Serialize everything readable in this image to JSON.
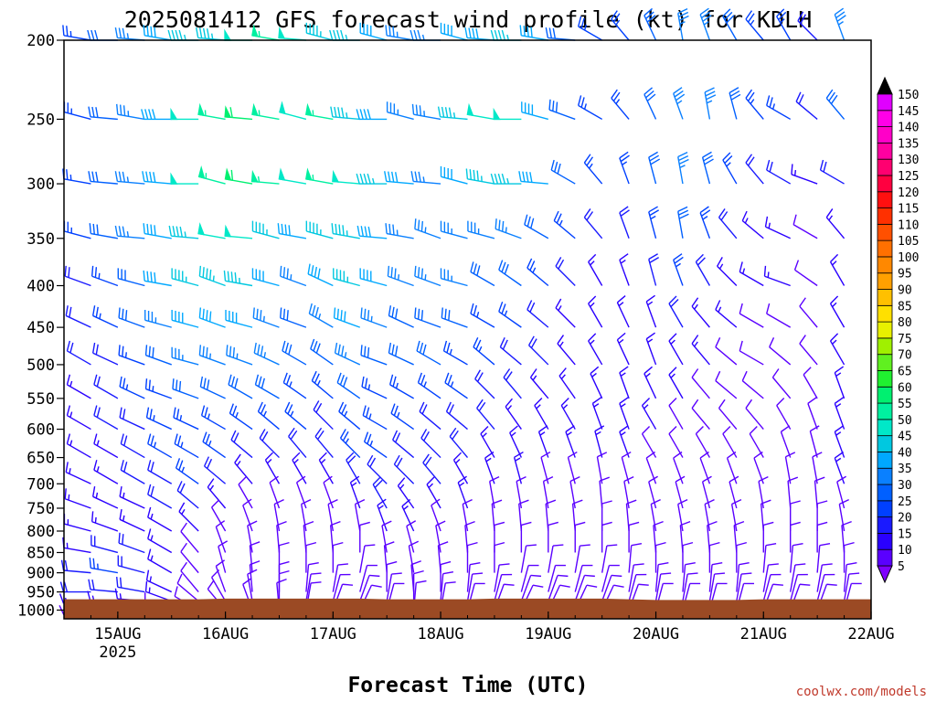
{
  "chart_data": {
    "type": "wind-barb-time-height",
    "title": "2025081412 GFS forecast wind profile (kt) for KDLH",
    "xlabel": "Forecast Time (UTC)",
    "ylabel": "",
    "credit": "coolwx.com/models",
    "x_ticks": [
      {
        "label": "15AUG",
        "sublabel": "2025",
        "hour": 12
      },
      {
        "label": "16AUG",
        "sublabel": "",
        "hour": 36
      },
      {
        "label": "17AUG",
        "sublabel": "",
        "hour": 60
      },
      {
        "label": "18AUG",
        "sublabel": "",
        "hour": 84
      },
      {
        "label": "19AUG",
        "sublabel": "",
        "hour": 108
      },
      {
        "label": "20AUG",
        "sublabel": "",
        "hour": 132
      },
      {
        "label": "21AUG",
        "sublabel": "",
        "hour": 156
      },
      {
        "label": "22AUG",
        "sublabel": "",
        "hour": 180
      }
    ],
    "x_range_hours": [
      0,
      180
    ],
    "y_axis": {
      "scale": "log-pressure",
      "unit": "hPa",
      "range": [
        1025,
        200
      ]
    },
    "y_ticks": [
      "200",
      "250",
      "300",
      "350",
      "400",
      "450",
      "500",
      "550",
      "600",
      "650",
      "700",
      "750",
      "800",
      "850",
      "900",
      "950",
      "1000"
    ],
    "colorbar": {
      "unit": "kt",
      "values": [
        5,
        10,
        15,
        20,
        25,
        30,
        35,
        40,
        45,
        50,
        55,
        60,
        65,
        70,
        75,
        80,
        85,
        90,
        95,
        100,
        105,
        110,
        115,
        120,
        125,
        130,
        135,
        140,
        145,
        150
      ],
      "colors": [
        "#7f00ff",
        "#5a00ff",
        "#2a00ff",
        "#1a1aff",
        "#0040ff",
        "#0060ff",
        "#0a80ff",
        "#00a8ff",
        "#00c8e0",
        "#00e8c8",
        "#00f0a0",
        "#00f070",
        "#20f030",
        "#60f020",
        "#a0f000",
        "#e8f000",
        "#ffe000",
        "#ffc000",
        "#ffa000",
        "#ff8800",
        "#ff7000",
        "#ff5000",
        "#ff3000",
        "#ff1010",
        "#ff0040",
        "#ff0070",
        "#ff00a0",
        "#ff00c8",
        "#ff00e8",
        "#e000ff"
      ]
    },
    "levels": [
      200,
      250,
      300,
      350,
      400,
      450,
      500,
      550,
      600,
      650,
      700,
      750,
      800,
      850,
      900,
      950,
      975,
      1000
    ],
    "times_hours": [
      0,
      6,
      12,
      18,
      24,
      30,
      36,
      42,
      48,
      54,
      60,
      66,
      72,
      78,
      84,
      90,
      96,
      102,
      108,
      114,
      120,
      126,
      132,
      138,
      144,
      150,
      156,
      162,
      168,
      174,
      180
    ],
    "wind_dir_deg": [
      [
        265,
        280,
        270,
        275,
        280,
        270,
        275,
        270,
        280,
        275,
        285,
        270,
        285,
        280,
        270,
        285,
        275,
        270,
        280,
        275,
        300,
        320,
        335,
        350,
        340,
        330,
        320,
        330,
        315,
        340,
        320
      ],
      [
        280,
        285,
        275,
        280,
        270,
        270,
        280,
        275,
        280,
        285,
        280,
        275,
        270,
        285,
        280,
        275,
        280,
        270,
        285,
        290,
        300,
        320,
        335,
        340,
        350,
        345,
        320,
        300,
        310,
        320,
        300
      ],
      [
        285,
        280,
        275,
        275,
        275,
        270,
        285,
        280,
        275,
        280,
        280,
        275,
        270,
        275,
        275,
        285,
        280,
        270,
        275,
        300,
        320,
        340,
        345,
        350,
        345,
        330,
        320,
        300,
        290,
        300,
        310
      ],
      [
        290,
        285,
        280,
        275,
        280,
        275,
        280,
        275,
        285,
        280,
        285,
        280,
        275,
        280,
        290,
        285,
        285,
        290,
        300,
        310,
        320,
        340,
        345,
        350,
        340,
        320,
        310,
        295,
        300,
        320,
        330
      ],
      [
        295,
        290,
        290,
        285,
        280,
        285,
        290,
        280,
        285,
        290,
        295,
        285,
        285,
        290,
        290,
        285,
        300,
        305,
        310,
        315,
        330,
        340,
        345,
        340,
        330,
        315,
        300,
        290,
        305,
        330,
        330
      ],
      [
        300,
        295,
        295,
        290,
        285,
        285,
        290,
        285,
        290,
        290,
        300,
        290,
        290,
        295,
        290,
        290,
        300,
        305,
        310,
        315,
        330,
        335,
        340,
        330,
        320,
        310,
        300,
        300,
        320,
        330,
        330
      ],
      [
        300,
        300,
        295,
        290,
        290,
        285,
        290,
        290,
        295,
        300,
        305,
        295,
        290,
        295,
        300,
        300,
        310,
        310,
        315,
        320,
        330,
        335,
        340,
        330,
        320,
        310,
        300,
        310,
        320,
        330,
        330
      ],
      [
        305,
        300,
        300,
        295,
        290,
        290,
        295,
        300,
        300,
        305,
        310,
        305,
        295,
        300,
        305,
        305,
        315,
        320,
        320,
        325,
        335,
        340,
        335,
        330,
        320,
        310,
        310,
        320,
        330,
        340,
        330
      ],
      [
        305,
        300,
        300,
        295,
        295,
        295,
        300,
        305,
        310,
        310,
        315,
        310,
        300,
        305,
        310,
        310,
        320,
        325,
        330,
        330,
        340,
        340,
        330,
        330,
        320,
        320,
        320,
        330,
        340,
        340,
        330
      ],
      [
        300,
        300,
        300,
        300,
        300,
        300,
        305,
        310,
        315,
        320,
        320,
        315,
        305,
        310,
        315,
        320,
        330,
        335,
        340,
        340,
        345,
        340,
        330,
        330,
        330,
        330,
        330,
        340,
        345,
        340,
        330
      ],
      [
        295,
        295,
        300,
        300,
        300,
        305,
        310,
        320,
        330,
        330,
        330,
        330,
        315,
        315,
        320,
        330,
        340,
        345,
        345,
        345,
        350,
        345,
        340,
        340,
        340,
        340,
        340,
        350,
        350,
        340,
        330
      ],
      [
        290,
        290,
        295,
        295,
        300,
        310,
        320,
        330,
        340,
        340,
        340,
        340,
        330,
        325,
        330,
        340,
        350,
        350,
        350,
        350,
        355,
        350,
        345,
        345,
        345,
        345,
        350,
        355,
        355,
        345,
        330
      ],
      [
        285,
        285,
        290,
        295,
        300,
        315,
        330,
        340,
        350,
        350,
        350,
        350,
        340,
        335,
        340,
        350,
        355,
        355,
        355,
        355,
        360,
        355,
        350,
        350,
        350,
        350,
        355,
        360,
        360,
        350,
        330
      ],
      [
        280,
        280,
        285,
        290,
        300,
        320,
        340,
        350,
        355,
        355,
        355,
        360,
        350,
        345,
        350,
        355,
        360,
        360,
        360,
        360,
        360,
        360,
        355,
        355,
        355,
        355,
        360,
        360,
        360,
        355,
        330
      ],
      [
        275,
        275,
        280,
        285,
        300,
        320,
        345,
        355,
        360,
        360,
        360,
        10,
        355,
        350,
        355,
        360,
        360,
        10,
        10,
        10,
        10,
        5,
        360,
        360,
        360,
        360,
        5,
        5,
        5,
        360,
        330
      ],
      [
        270,
        270,
        275,
        280,
        295,
        320,
        340,
        355,
        360,
        5,
        10,
        15,
        360,
        355,
        360,
        5,
        10,
        15,
        15,
        15,
        15,
        10,
        5,
        5,
        5,
        5,
        10,
        10,
        10,
        5,
        330
      ],
      [
        265,
        265,
        270,
        275,
        290,
        310,
        330,
        350,
        360,
        10,
        15,
        20,
        10,
        360,
        5,
        10,
        15,
        20,
        20,
        20,
        20,
        15,
        10,
        10,
        10,
        10,
        15,
        15,
        15,
        10,
        330
      ],
      [
        260,
        260,
        265,
        270,
        285,
        300,
        320,
        340,
        355,
        10,
        20,
        25,
        15,
        5,
        10,
        15,
        20,
        25,
        25,
        25,
        25,
        20,
        15,
        15,
        15,
        15,
        20,
        20,
        20,
        15,
        330
      ]
    ],
    "wind_speed_kt": [
      [
        25,
        25,
        30,
        35,
        40,
        45,
        45,
        50,
        55,
        50,
        45,
        45,
        40,
        35,
        35,
        40,
        40,
        45,
        40,
        30,
        25,
        25,
        30,
        35,
        35,
        30,
        25,
        25,
        20,
        35,
        45
      ],
      [
        25,
        25,
        30,
        35,
        40,
        50,
        55,
        60,
        55,
        50,
        55,
        45,
        40,
        35,
        35,
        45,
        50,
        50,
        40,
        30,
        25,
        25,
        30,
        35,
        35,
        30,
        25,
        25,
        20,
        30,
        40
      ],
      [
        20,
        25,
        30,
        35,
        40,
        50,
        55,
        60,
        55,
        50,
        55,
        50,
        45,
        40,
        35,
        40,
        45,
        45,
        40,
        30,
        25,
        25,
        30,
        35,
        30,
        25,
        20,
        20,
        15,
        20,
        30
      ],
      [
        20,
        25,
        30,
        35,
        40,
        45,
        50,
        50,
        45,
        40,
        45,
        45,
        40,
        35,
        35,
        35,
        35,
        35,
        30,
        25,
        20,
        20,
        25,
        30,
        25,
        20,
        15,
        15,
        10,
        15,
        25
      ],
      [
        20,
        20,
        25,
        30,
        40,
        45,
        45,
        45,
        40,
        35,
        40,
        45,
        40,
        35,
        35,
        35,
        30,
        30,
        25,
        20,
        15,
        15,
        20,
        25,
        20,
        15,
        15,
        15,
        10,
        15,
        20
      ],
      [
        15,
        20,
        25,
        30,
        35,
        40,
        40,
        40,
        35,
        30,
        35,
        40,
        35,
        30,
        30,
        30,
        25,
        25,
        20,
        15,
        15,
        15,
        15,
        20,
        15,
        15,
        10,
        10,
        10,
        15,
        20
      ],
      [
        15,
        20,
        20,
        25,
        30,
        35,
        35,
        35,
        35,
        30,
        30,
        35,
        30,
        30,
        30,
        25,
        25,
        20,
        20,
        15,
        15,
        15,
        15,
        15,
        15,
        10,
        10,
        10,
        10,
        15,
        20
      ],
      [
        15,
        15,
        20,
        25,
        25,
        30,
        30,
        30,
        30,
        25,
        25,
        30,
        25,
        25,
        25,
        25,
        20,
        20,
        15,
        15,
        15,
        15,
        15,
        15,
        10,
        10,
        10,
        10,
        10,
        15,
        20
      ],
      [
        15,
        15,
        20,
        20,
        25,
        25,
        25,
        25,
        25,
        25,
        20,
        25,
        25,
        25,
        20,
        20,
        20,
        15,
        15,
        15,
        15,
        15,
        15,
        10,
        10,
        10,
        10,
        10,
        10,
        15,
        20
      ],
      [
        15,
        15,
        15,
        20,
        25,
        25,
        25,
        20,
        20,
        20,
        20,
        25,
        25,
        20,
        20,
        20,
        15,
        15,
        15,
        15,
        15,
        15,
        10,
        10,
        10,
        10,
        10,
        10,
        10,
        15,
        20
      ],
      [
        15,
        15,
        15,
        20,
        20,
        25,
        20,
        15,
        15,
        15,
        15,
        20,
        20,
        20,
        20,
        15,
        15,
        15,
        10,
        10,
        10,
        10,
        10,
        10,
        10,
        10,
        10,
        10,
        10,
        15,
        20
      ],
      [
        15,
        15,
        15,
        15,
        20,
        20,
        15,
        10,
        10,
        10,
        10,
        15,
        20,
        15,
        15,
        15,
        10,
        10,
        10,
        10,
        10,
        10,
        10,
        10,
        10,
        10,
        10,
        10,
        10,
        10,
        15
      ],
      [
        15,
        15,
        15,
        15,
        15,
        15,
        10,
        10,
        10,
        10,
        10,
        10,
        15,
        15,
        10,
        10,
        10,
        10,
        10,
        10,
        10,
        10,
        10,
        10,
        10,
        10,
        10,
        10,
        10,
        10,
        15
      ],
      [
        15,
        15,
        20,
        20,
        15,
        10,
        10,
        10,
        10,
        10,
        10,
        10,
        10,
        10,
        10,
        10,
        10,
        10,
        10,
        10,
        10,
        10,
        10,
        10,
        10,
        10,
        10,
        10,
        10,
        10,
        15
      ],
      [
        20,
        20,
        25,
        20,
        15,
        10,
        10,
        10,
        10,
        10,
        10,
        10,
        10,
        10,
        10,
        10,
        10,
        10,
        10,
        10,
        10,
        10,
        10,
        10,
        10,
        10,
        10,
        10,
        10,
        10,
        15
      ],
      [
        15,
        20,
        20,
        20,
        15,
        10,
        10,
        10,
        10,
        10,
        10,
        10,
        10,
        10,
        10,
        10,
        10,
        10,
        10,
        10,
        10,
        10,
        10,
        10,
        10,
        10,
        10,
        10,
        10,
        10,
        15
      ],
      [
        10,
        15,
        15,
        15,
        15,
        10,
        10,
        10,
        10,
        10,
        10,
        10,
        10,
        10,
        10,
        10,
        10,
        10,
        10,
        10,
        10,
        10,
        10,
        10,
        10,
        10,
        10,
        10,
        10,
        10,
        15
      ],
      [
        10,
        10,
        10,
        10,
        10,
        10,
        10,
        10,
        10,
        10,
        10,
        10,
        10,
        10,
        10,
        10,
        10,
        10,
        10,
        10,
        10,
        10,
        10,
        10,
        10,
        10,
        10,
        10,
        10,
        10,
        15
      ]
    ],
    "terrain_color": "#9b4a24",
    "surface_pressure_hpa": [
      970,
      970,
      970,
      970,
      970,
      970,
      968,
      968,
      968,
      968,
      968,
      968,
      970,
      970,
      970,
      970,
      968,
      968,
      968,
      968,
      968,
      970,
      972,
      972,
      972,
      972,
      970,
      970,
      970,
      970,
      970
    ]
  }
}
